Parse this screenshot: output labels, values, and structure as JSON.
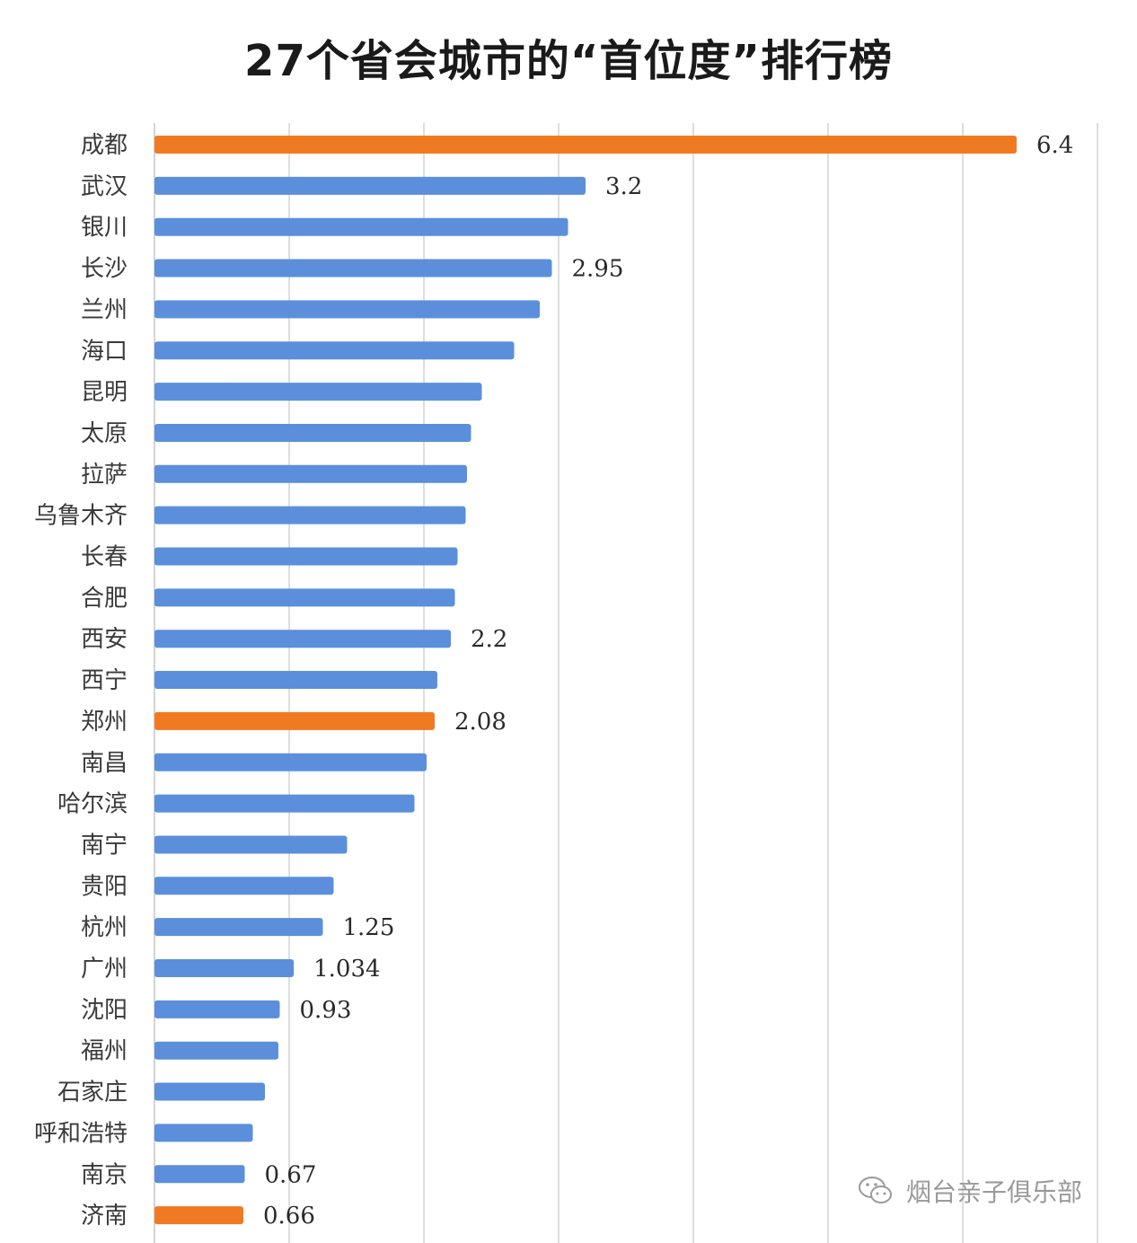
{
  "title": "27个省会城市的“首位度”排行榜",
  "watermark": "烟台亲子俱乐部",
  "chart_data": {
    "type": "bar",
    "orientation": "horizontal",
    "title": "27个省会城市的“首位度”排行榜",
    "xlabel": "",
    "ylabel": "",
    "xlim": [
      0,
      7
    ],
    "grid": true,
    "colors": {
      "default": "#5b8fdc",
      "highlight": "#f07a22"
    },
    "categories": [
      "成都",
      "武汉",
      "银川",
      "长沙",
      "兰州",
      "海口",
      "昆明",
      "太原",
      "拉萨",
      "乌鲁木齐",
      "长春",
      "合肥",
      "西安",
      "西宁",
      "郑州",
      "南昌",
      "哈尔滨",
      "南宁",
      "贵阳",
      "杭州",
      "广州",
      "沈阳",
      "福州",
      "石家庄",
      "呼和浩特",
      "南京",
      "济南"
    ],
    "values": [
      6.4,
      3.2,
      3.07,
      2.95,
      2.86,
      2.67,
      2.43,
      2.35,
      2.32,
      2.31,
      2.25,
      2.23,
      2.2,
      2.1,
      2.08,
      2.02,
      1.93,
      1.43,
      1.33,
      1.25,
      1.034,
      0.93,
      0.92,
      0.82,
      0.73,
      0.67,
      0.66
    ],
    "highlighted": [
      "成都",
      "郑州",
      "济南"
    ],
    "data_labels": {
      "成都": "6.4",
      "武汉": "3.2",
      "长沙": "2.95",
      "西安": "2.2",
      "郑州": "2.08",
      "杭州": "1.25",
      "广州": "1.034",
      "沈阳": "0.93",
      "南京": "0.67",
      "济南": "0.66"
    }
  }
}
